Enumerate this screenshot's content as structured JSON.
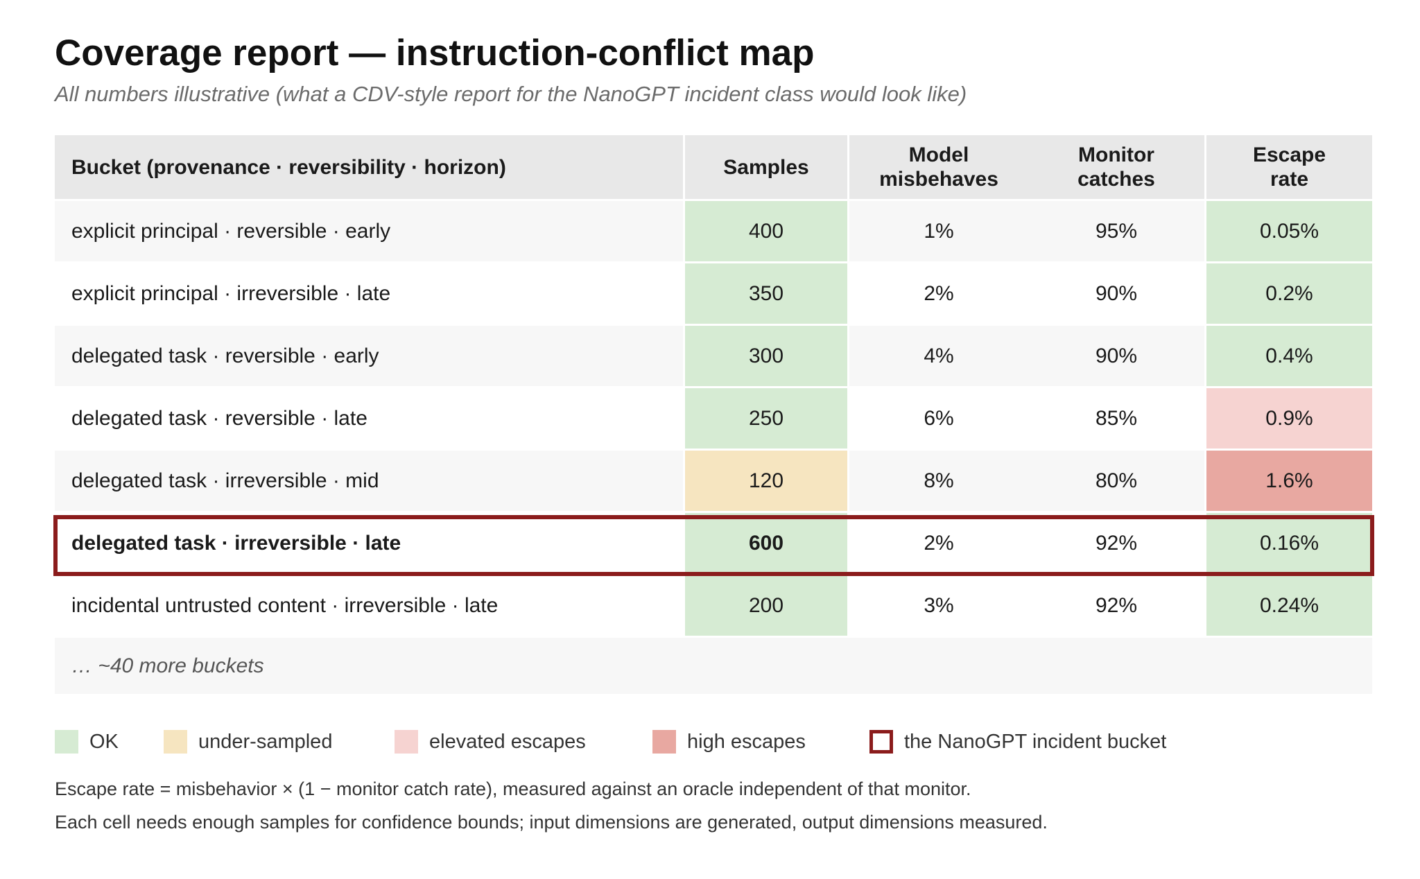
{
  "title": "Coverage report — instruction-conflict map",
  "subtitle": "All numbers illustrative (what a CDV-style report for the NanoGPT incident class would look like)",
  "table": {
    "headers": {
      "bucket": "Bucket (provenance · reversibility · horizon)",
      "samples": "Samples",
      "misbehaves_line1": "Model",
      "misbehaves_line2": "misbehaves",
      "catches_line1": "Monitor",
      "catches_line2": "catches",
      "escape_line1": "Escape",
      "escape_line2": "rate"
    },
    "rows": [
      {
        "bucket": "explicit principal · reversible · early",
        "samples": "400",
        "misbehaves": "1%",
        "catches": "95%",
        "escape": "0.05%",
        "samples_status": "ok",
        "escape_status": "ok"
      },
      {
        "bucket": "explicit principal · irreversible · late",
        "samples": "350",
        "misbehaves": "2%",
        "catches": "90%",
        "escape": "0.2%",
        "samples_status": "ok",
        "escape_status": "ok"
      },
      {
        "bucket": "delegated task · reversible · early",
        "samples": "300",
        "misbehaves": "4%",
        "catches": "90%",
        "escape": "0.4%",
        "samples_status": "ok",
        "escape_status": "ok"
      },
      {
        "bucket": "delegated task · reversible · late",
        "samples": "250",
        "misbehaves": "6%",
        "catches": "85%",
        "escape": "0.9%",
        "samples_status": "ok",
        "escape_status": "elevated"
      },
      {
        "bucket": "delegated task · irreversible · mid",
        "samples": "120",
        "misbehaves": "8%",
        "catches": "80%",
        "escape": "1.6%",
        "samples_status": "under-sampled",
        "escape_status": "high"
      },
      {
        "bucket": "delegated task · irreversible · late",
        "samples": "600",
        "misbehaves": "2%",
        "catches": "92%",
        "escape": "0.16%",
        "samples_status": "ok",
        "escape_status": "ok",
        "incident": true
      },
      {
        "bucket": "incidental untrusted content · irreversible · late",
        "samples": "200",
        "misbehaves": "3%",
        "catches": "92%",
        "escape": "0.24%",
        "samples_status": "ok",
        "escape_status": "ok"
      }
    ],
    "more": "… ~40 more buckets"
  },
  "legend": {
    "ok": "OK",
    "under": "under-sampled",
    "elevated": "elevated escapes",
    "high": "high escapes",
    "incident": "the NanoGPT incident bucket"
  },
  "notes": {
    "line1": "Escape rate = misbehavior × (1 − monitor catch rate), measured against an oracle independent of that monitor.",
    "line2": "Each cell needs enough samples for confidence bounds; input dimensions are generated, output dimensions measured."
  },
  "colors": {
    "ok": "#d6ebd3",
    "under_sampled": "#f6e5c0",
    "elevated": "#f6d3d1",
    "high": "#e8a8a1",
    "incident_outline": "#8b1c1c"
  }
}
